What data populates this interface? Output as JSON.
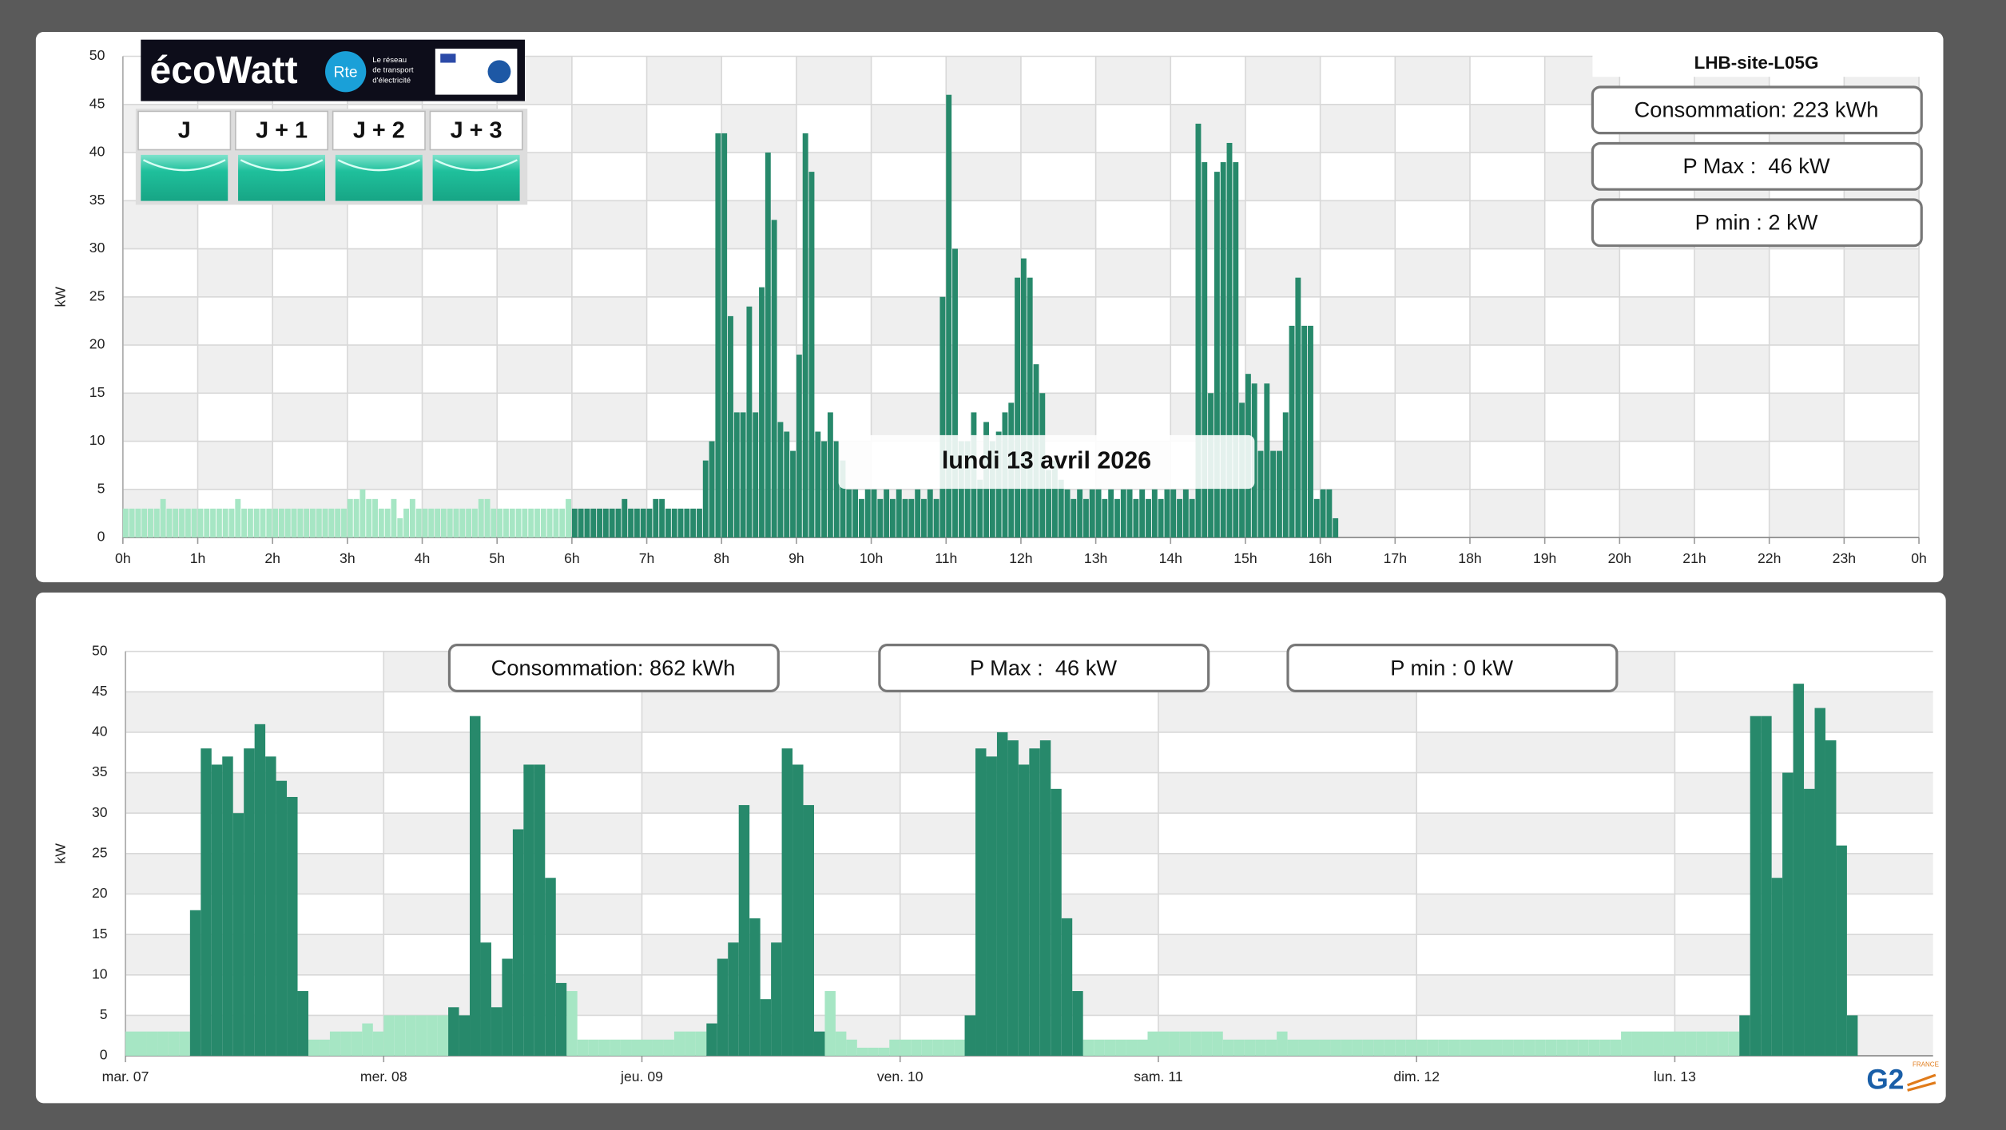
{
  "header": {
    "ecowatt": {
      "brand": "écoWatt",
      "rte": "Rte",
      "rte_tagline": [
        "Le réseau",
        "de transport",
        "d'électricité"
      ],
      "days": [
        "J",
        "J + 1",
        "J + 2",
        "J + 3"
      ]
    },
    "logo": {
      "brand": "G2",
      "country": "FRANCE"
    }
  },
  "chart_data": [
    {
      "type": "bar",
      "title": "LHB-site-L05G",
      "annotation": "lundi 13 avril 2026",
      "stats": [
        "Consommation: 223 kWh",
        "P Max :  46 kW",
        "P min : 2 kW"
      ],
      "ylabel": "kW",
      "grid": true,
      "xlim": [
        0,
        1440
      ],
      "xticks": [
        {
          "value": 0,
          "label": "0h"
        },
        {
          "value": 60,
          "label": "1h"
        },
        {
          "value": 120,
          "label": "2h"
        },
        {
          "value": 180,
          "label": "3h"
        },
        {
          "value": 240,
          "label": "4h"
        },
        {
          "value": 300,
          "label": "5h"
        },
        {
          "value": 360,
          "label": "6h"
        },
        {
          "value": 420,
          "label": "7h"
        },
        {
          "value": 480,
          "label": "8h"
        },
        {
          "value": 540,
          "label": "9h"
        },
        {
          "value": 600,
          "label": "10h"
        },
        {
          "value": 660,
          "label": "11h"
        },
        {
          "value": 720,
          "label": "12h"
        },
        {
          "value": 780,
          "label": "13h"
        },
        {
          "value": 840,
          "label": "14h"
        },
        {
          "value": 900,
          "label": "15h"
        },
        {
          "value": 960,
          "label": "16h"
        },
        {
          "value": 1020,
          "label": "17h"
        },
        {
          "value": 1080,
          "label": "18h"
        },
        {
          "value": 1140,
          "label": "19h"
        },
        {
          "value": 1200,
          "label": "20h"
        },
        {
          "value": 1260,
          "label": "21h"
        },
        {
          "value": 1320,
          "label": "22h"
        },
        {
          "value": 1380,
          "label": "23h"
        },
        {
          "value": 1440,
          "label": "0h"
        }
      ],
      "ylim": [
        0,
        50
      ],
      "yticks": [
        0,
        5,
        10,
        15,
        20,
        25,
        30,
        35,
        40,
        45,
        50
      ],
      "series": [
        {
          "color": "#a6e6c4",
          "x": [
            0,
            5,
            10,
            15,
            20,
            25,
            30,
            35,
            40,
            45,
            50,
            55,
            60,
            65,
            70,
            75,
            80,
            85,
            90,
            95,
            100,
            105,
            110,
            115,
            120,
            125,
            130,
            135,
            140,
            145,
            150,
            155,
            160,
            165,
            170,
            175,
            180,
            185,
            190,
            195,
            200,
            205,
            210,
            215,
            220,
            225,
            230,
            235,
            240,
            245,
            250,
            255,
            260,
            265,
            270,
            275,
            280,
            285,
            290,
            295,
            300,
            305,
            310,
            315,
            320,
            325,
            330,
            335,
            340,
            345,
            350,
            355
          ],
          "values": [
            3,
            3,
            3,
            3,
            3,
            3,
            4,
            3,
            3,
            3,
            3,
            3,
            3,
            3,
            3,
            3,
            3,
            3,
            4,
            3,
            3,
            3,
            3,
            3,
            3,
            3,
            3,
            3,
            3,
            3,
            3,
            3,
            3,
            3,
            3,
            3,
            4,
            4,
            5,
            4,
            4,
            3,
            3,
            4,
            2,
            3,
            4,
            3,
            3,
            3,
            3,
            3,
            3,
            3,
            3,
            3,
            3,
            4,
            4,
            3,
            3,
            3,
            3,
            3,
            3,
            3,
            3,
            3,
            3,
            3,
            3,
            4
          ]
        },
        {
          "color": "#27896b",
          "x": [
            360,
            365,
            370,
            375,
            380,
            385,
            390,
            395,
            400,
            405,
            410,
            415,
            420,
            425,
            430,
            435,
            440,
            445,
            450,
            455,
            460,
            465,
            470,
            475,
            480,
            485,
            490,
            495,
            500,
            505,
            510,
            515,
            520,
            525,
            530,
            535,
            540,
            545,
            550,
            555,
            560,
            565,
            570,
            575,
            580,
            585,
            590,
            595,
            600,
            605,
            610,
            615,
            620,
            625,
            630,
            635,
            640,
            645,
            650,
            655,
            660,
            665,
            670,
            675,
            680,
            685,
            690,
            695,
            700,
            705,
            710,
            715,
            720,
            725,
            730,
            735,
            740,
            745,
            750,
            755,
            760,
            765,
            770,
            775,
            780,
            785,
            790,
            795,
            800,
            805,
            810,
            815,
            820,
            825,
            830,
            835,
            840,
            845,
            850,
            855,
            860,
            865,
            870,
            875,
            880,
            885,
            890,
            895,
            900,
            905,
            910,
            915,
            920,
            925,
            930,
            935,
            940,
            945,
            950,
            955,
            960,
            965,
            970
          ],
          "values": [
            3,
            3,
            3,
            3,
            3,
            3,
            3,
            3,
            4,
            3,
            3,
            3,
            3,
            4,
            4,
            3,
            3,
            3,
            3,
            3,
            3,
            8,
            10,
            42,
            42,
            23,
            13,
            13,
            24,
            13,
            26,
            40,
            33,
            12,
            11,
            9,
            19,
            42,
            38,
            11,
            10,
            13,
            10,
            8,
            5,
            5,
            4,
            5,
            5,
            4,
            5,
            4,
            5,
            4,
            4,
            5,
            4,
            5,
            4,
            25,
            46,
            30,
            10,
            10,
            13,
            6,
            12,
            10,
            11,
            13,
            14,
            27,
            29,
            27,
            18,
            15,
            7,
            8,
            6,
            5,
            4,
            5,
            4,
            5,
            5,
            4,
            5,
            4,
            5,
            5,
            4,
            5,
            4,
            5,
            4,
            5,
            5,
            4,
            5,
            4,
            43,
            39,
            15,
            38,
            39,
            41,
            39,
            14,
            17,
            16,
            9,
            16,
            9,
            9,
            13,
            22,
            27,
            22,
            22,
            4,
            5,
            5,
            2
          ]
        }
      ]
    },
    {
      "type": "bar",
      "stats": [
        "Consommation: 862 kWh",
        "P Max :  46 kW",
        "P min : 0 kW"
      ],
      "ylabel": "kW",
      "grid": true,
      "xlim": [
        0,
        168
      ],
      "xticks": [
        {
          "value": 0,
          "label": "mar. 07"
        },
        {
          "value": 24,
          "label": "mer. 08"
        },
        {
          "value": 48,
          "label": "jeu. 09"
        },
        {
          "value": 72,
          "label": "ven. 10"
        },
        {
          "value": 96,
          "label": "sam. 11"
        },
        {
          "value": 120,
          "label": "dim. 12"
        },
        {
          "value": 144,
          "label": "lun. 13"
        }
      ],
      "ylim": [
        0,
        50
      ],
      "yticks": [
        0,
        5,
        10,
        15,
        20,
        25,
        30,
        35,
        40,
        45,
        50
      ],
      "series": [
        {
          "color": "#a6e6c4",
          "x": [
            0,
            1,
            2,
            3,
            4,
            5,
            17,
            18,
            19,
            20,
            21,
            22,
            23,
            24,
            25,
            26,
            27,
            28,
            29,
            41,
            42,
            43,
            44,
            45,
            46,
            47,
            48,
            49,
            50,
            51,
            52,
            53,
            65,
            66,
            67,
            68,
            69,
            70,
            71,
            72,
            73,
            74,
            75,
            76,
            77,
            89,
            90,
            91,
            92,
            93,
            94,
            95,
            96,
            97,
            98,
            99,
            100,
            101,
            102,
            103,
            104,
            105,
            106,
            107,
            108,
            109,
            110,
            111,
            112,
            113,
            114,
            115,
            116,
            117,
            118,
            119,
            120,
            121,
            122,
            123,
            124,
            125,
            126,
            127,
            128,
            129,
            130,
            131,
            132,
            133,
            134,
            135,
            136,
            137,
            138,
            139,
            140,
            141,
            142,
            143,
            144,
            145,
            146,
            147,
            148,
            149
          ],
          "values": [
            3,
            3,
            3,
            3,
            3,
            3,
            2,
            2,
            3,
            3,
            3,
            4,
            3,
            5,
            5,
            5,
            5,
            5,
            5,
            8,
            2,
            2,
            2,
            2,
            2,
            2,
            2,
            2,
            2,
            3,
            3,
            3,
            8,
            3,
            2,
            1,
            1,
            1,
            2,
            2,
            2,
            2,
            2,
            2,
            2,
            2,
            2,
            2,
            2,
            2,
            2,
            3,
            3,
            3,
            3,
            3,
            3,
            3,
            2,
            2,
            2,
            2,
            2,
            3,
            2,
            2,
            2,
            2,
            2,
            2,
            2,
            2,
            2,
            2,
            2,
            2,
            2,
            2,
            2,
            2,
            2,
            2,
            2,
            2,
            2,
            2,
            2,
            2,
            2,
            2,
            2,
            2,
            2,
            2,
            2,
            3,
            3,
            3,
            3,
            3,
            3,
            3,
            3,
            3,
            3,
            3
          ]
        },
        {
          "color": "#27896b",
          "x": [
            6,
            7,
            8,
            9,
            10,
            11,
            12,
            13,
            14,
            15,
            16,
            30,
            31,
            32,
            33,
            34,
            35,
            36,
            37,
            38,
            39,
            40,
            54,
            55,
            56,
            57,
            58,
            59,
            60,
            61,
            62,
            63,
            64,
            78,
            79,
            80,
            81,
            82,
            83,
            84,
            85,
            86,
            87,
            88,
            150,
            151,
            152,
            153,
            154,
            155,
            156,
            157,
            158,
            159,
            160
          ],
          "values": [
            18,
            38,
            36,
            37,
            30,
            38,
            41,
            37,
            34,
            32,
            8,
            6,
            5,
            42,
            14,
            6,
            12,
            28,
            36,
            36,
            22,
            9,
            4,
            12,
            14,
            31,
            17,
            7,
            14,
            38,
            36,
            31,
            3,
            5,
            38,
            37,
            40,
            39,
            36,
            38,
            39,
            33,
            17,
            8,
            5,
            42,
            42,
            22,
            35,
            46,
            33,
            43,
            39,
            26,
            5
          ]
        }
      ]
    }
  ]
}
